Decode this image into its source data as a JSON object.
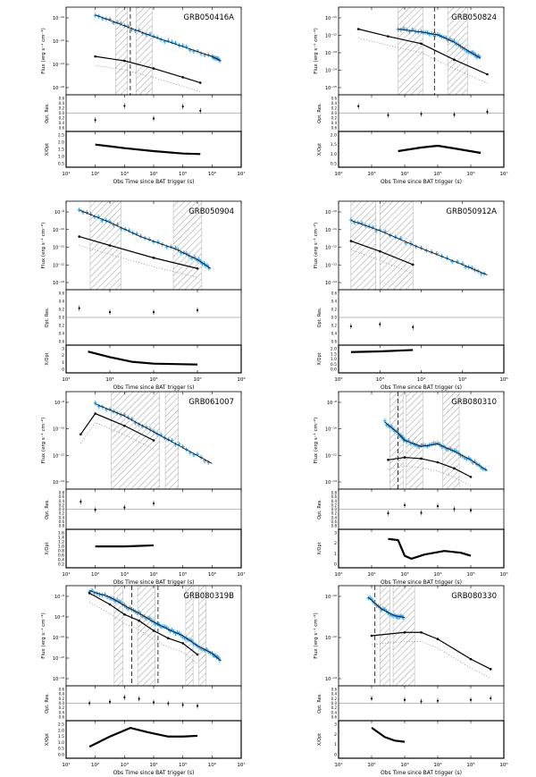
{
  "chart_data": [
    {
      "type": "scatter",
      "panel_title": "GRB050416A",
      "xlabel": "Obs Time since BAT trigger (s)",
      "ylabel_flux": "Flux (erg s⁻¹ cm⁻²)",
      "ylabel_res": "Opt. Res.",
      "ylabel_ratio": "X/Opt",
      "xlim_log": [
        1,
        7
      ],
      "ylim_flux_log": [
        -17,
        -9
      ],
      "xtick_labels": [
        "10¹",
        "10²",
        "10³",
        "10⁴",
        "10⁵",
        "10⁶",
        "10⁷"
      ],
      "ytick_labels_flux": [
        "10⁻¹⁰",
        "10⁻¹²",
        "10⁻¹⁴",
        "10⁻¹⁶"
      ],
      "ytick_labels_res": [
        "0.6",
        "0.4",
        "0.2",
        "0.0",
        "0.2",
        "0.4",
        "0.6"
      ],
      "ytick_labels_ratio": [
        "0.5",
        "1.0",
        "1.5",
        "2.0",
        "2.5"
      ],
      "hatched_log": [
        [
          2.7,
          3.1
        ],
        [
          3.4,
          3.95
        ]
      ],
      "dashed_log": [
        3.2
      ],
      "xray_line": [
        [
          2.0,
          -9.7
        ],
        [
          3.0,
          -10.7
        ],
        [
          4.0,
          -11.7
        ],
        [
          5.0,
          -12.6
        ],
        [
          6.0,
          -13.5
        ],
        [
          6.3,
          -13.9
        ]
      ],
      "opt_line": [
        [
          2.0,
          -13.5
        ],
        [
          3.0,
          -13.9
        ],
        [
          4.0,
          -14.6
        ],
        [
          5.0,
          -15.4
        ],
        [
          5.6,
          -15.9
        ]
      ],
      "ratio_curve": [
        [
          2.0,
          1.9
        ],
        [
          3.0,
          1.6
        ],
        [
          4.0,
          1.35
        ],
        [
          5.0,
          1.15
        ],
        [
          5.6,
          1.1
        ]
      ],
      "ylim_ratio": [
        0,
        3
      ]
    },
    {
      "type": "scatter",
      "panel_title": "GRB050824",
      "xlabel": "Obs Time since BAT trigger (s)",
      "ylabel_flux": "Flux (erg s⁻¹ cm⁻²)",
      "ylabel_res": "Opt. Res.",
      "ylabel_ratio": "X/Opt",
      "xlim_log": [
        2,
        7
      ],
      "ylim_flux_log": [
        -16,
        -10
      ],
      "xtick_labels": [
        "10²",
        "10³",
        "10⁴",
        "10⁵",
        "10⁶",
        "10⁷"
      ],
      "ytick_labels_flux": [
        "10⁻¹¹",
        "10⁻¹²",
        "10⁻¹³",
        "10⁻¹⁴",
        "10⁻¹⁵"
      ],
      "ytick_labels_res": [
        "0.6",
        "0.4",
        "0.2",
        "0.0",
        "0.2",
        "0.4",
        "0.6"
      ],
      "ytick_labels_ratio": [
        "0.5",
        "1.0",
        "1.5",
        "2.0"
      ],
      "hatched_log": [
        [
          3.8,
          4.55
        ],
        [
          5.3,
          5.9
        ]
      ],
      "dashed_log": [
        4.9
      ],
      "xray_line": [
        [
          3.8,
          -11.5
        ],
        [
          4.5,
          -11.7
        ],
        [
          5.0,
          -11.9
        ],
        [
          5.5,
          -12.4
        ],
        [
          6.0,
          -13.1
        ],
        [
          6.3,
          -13.5
        ]
      ],
      "opt_line": [
        [
          2.6,
          -11.5
        ],
        [
          3.5,
          -12.0
        ],
        [
          4.5,
          -12.5
        ],
        [
          5.5,
          -13.6
        ],
        [
          6.5,
          -14.6
        ]
      ],
      "ratio_curve": [
        [
          3.8,
          0.9
        ],
        [
          4.5,
          1.1
        ],
        [
          5.0,
          1.2
        ],
        [
          5.5,
          1.05
        ],
        [
          6.3,
          0.8
        ]
      ],
      "ylim_ratio": [
        0,
        2
      ]
    },
    {
      "type": "scatter",
      "panel_title": "GRB050904",
      "xlabel": "Obs Time since BAT trigger (s)",
      "ylabel_flux": "Flux (erg s⁻¹ cm⁻²)",
      "ylabel_res": "Opt. Res.",
      "ylabel_ratio": "X/Opt",
      "xlim_log": [
        2,
        6
      ],
      "ylim_flux_log": [
        -14,
        -9
      ],
      "xtick_labels": [
        "10²",
        "10³",
        "10⁴",
        "10⁵",
        "10⁶"
      ],
      "ytick_labels_flux": [
        "10⁻⁹",
        "10⁻¹⁰",
        "10⁻¹¹",
        "10⁻¹²",
        "10⁻¹³"
      ],
      "ytick_labels_res": [
        "0.6",
        "0.4",
        "0.2",
        "0.0",
        "0.2",
        "0.4",
        "0.6"
      ],
      "ytick_labels_ratio": [
        "0",
        "1",
        "2",
        "3"
      ],
      "hatched_log": [
        [
          2.55,
          3.25
        ],
        [
          4.45,
          5.1
        ]
      ],
      "dashed_log": [],
      "xray_line": [
        [
          2.3,
          -9.5
        ],
        [
          3.0,
          -10.2
        ],
        [
          3.7,
          -11.0
        ],
        [
          4.5,
          -11.7
        ],
        [
          5.0,
          -12.3
        ],
        [
          5.3,
          -12.8
        ]
      ],
      "opt_line": [
        [
          2.3,
          -11.0
        ],
        [
          3.0,
          -11.5
        ],
        [
          4.0,
          -12.2
        ],
        [
          5.0,
          -12.8
        ]
      ],
      "ratio_curve": [
        [
          2.5,
          2.3
        ],
        [
          3.0,
          1.7
        ],
        [
          3.5,
          1.2
        ],
        [
          4.0,
          1.0
        ],
        [
          5.0,
          0.9
        ]
      ],
      "ylim_ratio": [
        0,
        3
      ]
    },
    {
      "type": "scatter",
      "panel_title": "GRB050912A",
      "xlabel": "Obs Time since BAT trigger (s)",
      "ylabel_flux": "Flux (erg s⁻¹ cm⁻²)",
      "ylabel_res": "Opt. Res.",
      "ylabel_ratio": "X/Opt",
      "xlim_log": [
        2,
        6
      ],
      "ylim_flux_log": [
        -15,
        -9
      ],
      "xtick_labels": [
        "10²",
        "10³",
        "10⁴",
        "10⁵",
        "10⁶"
      ],
      "ytick_labels_flux": [
        "10⁻¹⁰",
        "10⁻¹¹",
        "10⁻¹²",
        "10⁻¹³",
        "10⁻¹⁴"
      ],
      "ytick_labels_res": [
        "0.6",
        "0.4",
        "0.2",
        "0.0",
        "0.2",
        "0.4",
        "0.6"
      ],
      "ytick_labels_ratio": [
        "0.0",
        "0.5",
        "1.0",
        "1.5",
        "2.0"
      ],
      "hatched_log": [
        [
          2.3,
          2.9
        ],
        [
          3.0,
          3.8
        ]
      ],
      "dashed_log": [],
      "xray_line": [
        [
          2.3,
          -10.3
        ],
        [
          3.0,
          -11.0
        ],
        [
          4.0,
          -12.2
        ],
        [
          5.0,
          -13.3
        ],
        [
          5.6,
          -14.0
        ]
      ],
      "opt_line": [
        [
          2.3,
          -11.7
        ],
        [
          3.0,
          -12.4
        ],
        [
          3.8,
          -13.3
        ]
      ],
      "ratio_curve": [
        [
          2.3,
          1.5
        ],
        [
          3.0,
          1.55
        ],
        [
          3.8,
          1.65
        ]
      ],
      "ylim_ratio": [
        0,
        2
      ]
    },
    {
      "type": "scatter",
      "panel_title": "GRB061007",
      "xlabel": "Obs Time since BAT trigger (s)",
      "ylabel_flux": "Flux (erg s⁻¹ cm⁻²)",
      "ylabel_res": "Opt. Res.",
      "ylabel_ratio": "X/Opt",
      "xlim_log": [
        1,
        7
      ],
      "ylim_flux_log": [
        -15,
        -7
      ],
      "xtick_labels": [
        "10¹",
        "10²",
        "10³",
        "10⁴",
        "10⁵",
        "10⁶",
        "10⁷"
      ],
      "ytick_labels_flux": [
        "10⁻⁸",
        "10⁻¹⁰",
        "10⁻¹²",
        "10⁻¹⁴"
      ],
      "ytick_labels_res": [
        "0.8",
        "0.6",
        "0.4",
        "0.2",
        "0.0",
        "0.2",
        "0.4",
        "0.6",
        "0.8"
      ],
      "ytick_labels_ratio": [
        "0.2",
        "0.4",
        "0.6",
        "0.8",
        "1.0",
        "1.2",
        "1.4",
        "1.6"
      ],
      "hatched_log": [
        [
          2.55,
          4.2
        ],
        [
          4.4,
          4.85
        ]
      ],
      "dashed_log": [],
      "xray_line": [
        [
          2.0,
          -8.0
        ],
        [
          3.0,
          -9.0
        ],
        [
          4.0,
          -10.3
        ],
        [
          5.0,
          -11.6
        ],
        [
          6.0,
          -12.9
        ]
      ],
      "opt_line": [
        [
          1.5,
          -10.5
        ],
        [
          2.0,
          -8.8
        ],
        [
          3.0,
          -9.8
        ],
        [
          4.0,
          -11.0
        ]
      ],
      "ratio_curve": [
        [
          2.0,
          1.0
        ],
        [
          3.0,
          1.0
        ],
        [
          4.0,
          1.05
        ]
      ],
      "ylim_ratio": [
        0,
        1.8
      ]
    },
    {
      "type": "scatter",
      "panel_title": "GRB080310",
      "xlabel": "Obs Time since BAT trigger (s)",
      "ylabel_flux": "Flux (erg s⁻¹ cm⁻²)",
      "ylabel_res": "Opt. Res.",
      "ylabel_ratio": "X/Opt",
      "xlim_log": [
        1,
        6
      ],
      "ylim_flux_log": [
        -15,
        -7
      ],
      "xtick_labels": [
        "10¹",
        "10²",
        "10³",
        "10⁴",
        "10⁵",
        "10⁶"
      ],
      "ytick_labels_flux": [
        "10⁻⁸",
        "10⁻¹⁰",
        "10⁻¹²",
        "10⁻¹⁴"
      ],
      "ytick_labels_res": [
        "0.8",
        "0.6",
        "0.4",
        "0.2",
        "0.0",
        "0.2",
        "0.4",
        "0.6",
        "0.8"
      ],
      "ytick_labels_ratio": [
        "0",
        "1",
        "2",
        "3"
      ],
      "hatched_log": [
        [
          2.55,
          2.95
        ],
        [
          3.05,
          3.55
        ],
        [
          4.15,
          4.65
        ]
      ],
      "dashed_log": [
        2.8
      ],
      "xray_line": [
        [
          2.4,
          -9.5
        ],
        [
          2.8,
          -10.4
        ],
        [
          3.0,
          -11.0
        ],
        [
          3.5,
          -11.5
        ],
        [
          4.0,
          -11.3
        ],
        [
          4.5,
          -11.9
        ],
        [
          5.0,
          -12.6
        ],
        [
          5.5,
          -13.5
        ]
      ],
      "opt_line": [
        [
          2.5,
          -12.6
        ],
        [
          3.0,
          -12.4
        ],
        [
          3.5,
          -12.5
        ],
        [
          4.0,
          -12.8
        ],
        [
          4.5,
          -13.3
        ],
        [
          5.0,
          -14.0
        ]
      ],
      "ratio_curve": [
        [
          2.5,
          2.4
        ],
        [
          2.8,
          2.3
        ],
        [
          3.0,
          1.0
        ],
        [
          3.2,
          0.75
        ],
        [
          3.6,
          1.1
        ],
        [
          4.2,
          1.4
        ],
        [
          4.7,
          1.25
        ],
        [
          5.0,
          1.0
        ]
      ],
      "ylim_ratio": [
        0,
        3.2
      ]
    },
    {
      "type": "scatter",
      "panel_title": "GRB080319B",
      "xlabel": "Obs Time since BAT trigger (s)",
      "ylabel_flux": "Flux (erg s⁻¹ cm⁻²)",
      "ylabel_res": "Opt. Res.",
      "ylabel_ratio": "X/Opt",
      "xlim_log": [
        1,
        7
      ],
      "ylim_flux_log": [
        -14,
        -6
      ],
      "xtick_labels": [
        "10¹",
        "10²",
        "10³",
        "10⁴",
        "10⁵",
        "10⁶",
        "10⁷"
      ],
      "ytick_labels_flux": [
        "10⁻⁶",
        "10⁻⁸",
        "10⁻¹⁰",
        "10⁻¹²",
        "10⁻¹⁴"
      ],
      "ytick_labels_res": [
        "0.6",
        "0.4",
        "0.2",
        "0.0",
        "0.2",
        "0.4",
        "0.6"
      ],
      "ytick_labels_ratio": [
        "0.0",
        "0.5",
        "1.0",
        "1.5",
        "2.0",
        "2.5"
      ],
      "hatched_log": [
        [
          2.65,
          2.95
        ],
        [
          3.45,
          4.05
        ],
        [
          5.1,
          5.35
        ],
        [
          5.55,
          5.8
        ]
      ],
      "dashed_log": [
        3.25,
        4.15
      ],
      "xray_line": [
        [
          1.8,
          -6.4
        ],
        [
          2.5,
          -6.9
        ],
        [
          3.0,
          -7.6
        ],
        [
          3.5,
          -8.2
        ],
        [
          4.0,
          -8.9
        ],
        [
          4.5,
          -9.5
        ],
        [
          5.0,
          -10.0
        ],
        [
          5.5,
          -10.8
        ],
        [
          6.0,
          -11.4
        ],
        [
          6.3,
          -12.0
        ]
      ],
      "opt_line": [
        [
          1.8,
          -6.6
        ],
        [
          2.5,
          -7.5
        ],
        [
          3.0,
          -8.3
        ],
        [
          3.5,
          -8.8
        ],
        [
          4.0,
          -9.6
        ],
        [
          4.5,
          -10.2
        ],
        [
          5.0,
          -10.6
        ],
        [
          5.5,
          -11.5
        ]
      ],
      "ratio_curve": [
        [
          1.8,
          0.8
        ],
        [
          2.5,
          1.5
        ],
        [
          3.2,
          2.1
        ],
        [
          3.8,
          1.8
        ],
        [
          4.5,
          1.5
        ],
        [
          5.0,
          1.5
        ],
        [
          5.5,
          1.55
        ]
      ],
      "ylim_ratio": [
        0,
        2.6
      ]
    },
    {
      "type": "scatter",
      "panel_title": "GRB080330",
      "xlabel": "Obs Time since BAT trigger (s)",
      "ylabel_flux": "Flux (erg s⁻¹ cm⁻²)",
      "ylabel_res": "Opt. Res.",
      "ylabel_ratio": "X/Opt",
      "xlim_log": [
        1,
        6
      ],
      "ylim_flux_log": [
        -15,
        -9
      ],
      "xtick_labels": [
        "10¹",
        "10²",
        "10³",
        "10⁴",
        "10⁵",
        "10⁶"
      ],
      "ytick_labels_flux": [
        "10⁻¹⁰",
        "10⁻¹²",
        "10⁻¹⁴"
      ],
      "ytick_labels_res": [
        "0.6",
        "0.4",
        "0.2",
        "0.0",
        "0.2",
        "0.4",
        "0.6"
      ],
      "ytick_labels_ratio": [
        "0",
        "1",
        "2",
        "3"
      ],
      "hatched_log": [
        [
          2.25,
          2.55
        ],
        [
          2.65,
          3.3
        ]
      ],
      "dashed_log": [
        2.1
      ],
      "xray_line": [
        [
          1.9,
          -9.7
        ],
        [
          2.3,
          -10.4
        ],
        [
          2.7,
          -10.8
        ],
        [
          3.0,
          -10.9
        ]
      ],
      "opt_line": [
        [
          2.0,
          -12.0
        ],
        [
          3.0,
          -11.8
        ],
        [
          3.5,
          -11.8
        ],
        [
          4.0,
          -12.2
        ],
        [
          5.0,
          -13.4
        ],
        [
          5.6,
          -14.0
        ]
      ],
      "ratio_curve": [
        [
          2.0,
          2.6
        ],
        [
          2.4,
          1.8
        ],
        [
          2.7,
          1.5
        ],
        [
          3.0,
          1.4
        ]
      ],
      "ylim_ratio": [
        0,
        3.2
      ]
    }
  ]
}
